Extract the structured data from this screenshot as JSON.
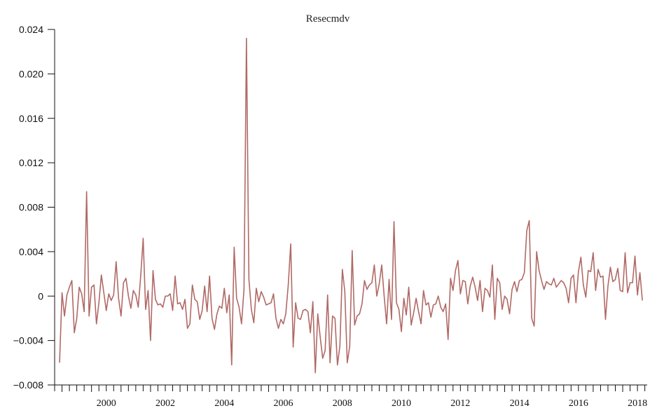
{
  "chart_data": {
    "type": "line",
    "title": "Resecmdv",
    "xlabel": "",
    "ylabel": "",
    "ylim": [
      -0.008,
      0.024
    ],
    "xlim": [
      1998.75,
      2018.83
    ],
    "yticks": [
      -0.008,
      -0.004,
      0,
      0.004,
      0.008,
      0.012,
      0.016,
      0.02,
      0.024
    ],
    "ytick_labels": [
      "−0.008",
      "−0.004",
      "0",
      "0.004",
      "0.008",
      "0.012",
      "0.016",
      "0.020",
      "0.024"
    ],
    "xticks": [
      2000,
      2002,
      2004,
      2006,
      2008,
      2010,
      2012,
      2014,
      2016,
      2018
    ],
    "xtick_labels": [
      "2000",
      "2002",
      "2004",
      "2006",
      "2008",
      "2010",
      "2012",
      "2014",
      "2016",
      "2018"
    ],
    "grid": false,
    "legend": "none",
    "series": [
      {
        "color": "#b06a66",
        "x_start": 1998.917,
        "x_step": 0.08333,
        "values": [
          -0.006,
          0.0003,
          -0.0018,
          0.0001,
          0.0008,
          0.0014,
          -0.0033,
          -0.002,
          0.0008,
          0.0002,
          -0.0014,
          0.0094,
          -0.0018,
          0.0008,
          0.001,
          -0.0025,
          -0.0006,
          0.0019,
          0.0003,
          -0.0013,
          0.0002,
          -0.0004,
          0.0001,
          0.0031,
          -0.0002,
          -0.0018,
          0.0012,
          0.0016,
          0.0,
          -0.0011,
          0.0005,
          0.0001,
          -0.001,
          0.0018,
          0.0052,
          -0.0012,
          0.0005,
          -0.004,
          0.0023,
          -0.0003,
          -0.0008,
          -0.0007,
          -0.001,
          0.0,
          0.0,
          0.0002,
          -0.0013,
          0.0018,
          -0.0007,
          -0.0006,
          -0.0012,
          -0.0003,
          -0.0029,
          -0.0025,
          0.001,
          -0.0003,
          -0.0005,
          -0.0021,
          -0.0013,
          0.0009,
          -0.0014,
          0.0018,
          -0.002,
          -0.003,
          -0.0016,
          -0.0009,
          -0.0011,
          0.0007,
          -0.0015,
          0.0001,
          -0.0062,
          0.0044,
          -0.0002,
          -0.001,
          -0.0025,
          0.0006,
          0.0232,
          0.0015,
          -0.0012,
          -0.0024,
          0.0007,
          -0.0005,
          0.0004,
          -0.0001,
          -0.0008,
          -0.0007,
          -0.0006,
          0.0002,
          -0.002,
          -0.0029,
          -0.0021,
          -0.0025,
          -0.0016,
          0.001,
          0.0047,
          -0.0046,
          -0.0006,
          -0.002,
          -0.0021,
          -0.0013,
          -0.0012,
          -0.0014,
          -0.0033,
          -0.0005,
          -0.0069,
          -0.0016,
          -0.0037,
          -0.0056,
          -0.0049,
          0.0001,
          -0.006,
          -0.0018,
          -0.002,
          -0.0062,
          -0.0045,
          0.0024,
          0.0004,
          -0.006,
          -0.0045,
          0.0041,
          -0.0026,
          -0.0018,
          -0.0016,
          -0.0007,
          0.0014,
          0.0006,
          0.001,
          0.0012,
          0.0028,
          0.0,
          0.0011,
          0.0028,
          0.0,
          -0.0025,
          0.0015,
          -0.0021,
          0.0067,
          -0.0006,
          -0.0012,
          -0.0032,
          -0.0002,
          -0.0017,
          0.0008,
          -0.0026,
          -0.0015,
          -0.0002,
          -0.0014,
          -0.0025,
          0.0005,
          -0.0008,
          -0.0006,
          -0.0019,
          -0.0008,
          -0.0007,
          0.0,
          -0.001,
          -0.0014,
          -0.0007,
          -0.0039,
          0.0016,
          0.0005,
          0.0023,
          0.0032,
          0.0002,
          0.0014,
          0.0013,
          -0.0007,
          0.0009,
          0.0017,
          0.0008,
          -0.0004,
          0.0014,
          -0.0014,
          0.0007,
          0.0005,
          -0.0001,
          0.0028,
          -0.0021,
          0.0016,
          0.0012,
          -0.0012,
          0.0,
          -0.0003,
          -0.0016,
          0.0006,
          0.0013,
          0.0004,
          0.0014,
          0.0015,
          0.0021,
          0.0059,
          0.0068,
          -0.002,
          -0.0027,
          0.004,
          0.0023,
          0.0014,
          0.0006,
          0.0013,
          0.0011,
          0.001,
          0.0016,
          0.0008,
          0.0011,
          0.0014,
          0.0012,
          0.0007,
          -0.0006,
          0.0016,
          0.0019,
          -0.0006,
          0.0022,
          0.0035,
          0.001,
          -0.0001,
          0.0023,
          0.0022,
          0.0039,
          0.0005,
          0.0024,
          0.0017,
          0.0018,
          -0.0021,
          0.0009,
          0.0026,
          0.0013,
          0.0015,
          0.0025,
          0.0005,
          0.0004,
          0.0039,
          0.0003,
          0.0012,
          0.0012,
          0.0036,
          0.0001,
          0.0021,
          -0.0004
        ]
      }
    ]
  }
}
